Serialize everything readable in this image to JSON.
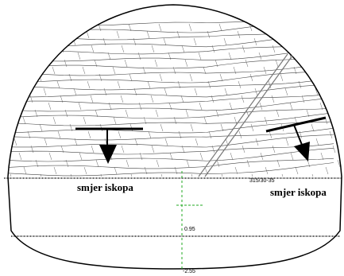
{
  "labels": {
    "left_direction": "smjer iskopa",
    "right_direction": "smjer iskopa",
    "orientation": "315/30-35",
    "level_upper": "0.95",
    "level_lower": "-2.55"
  }
}
